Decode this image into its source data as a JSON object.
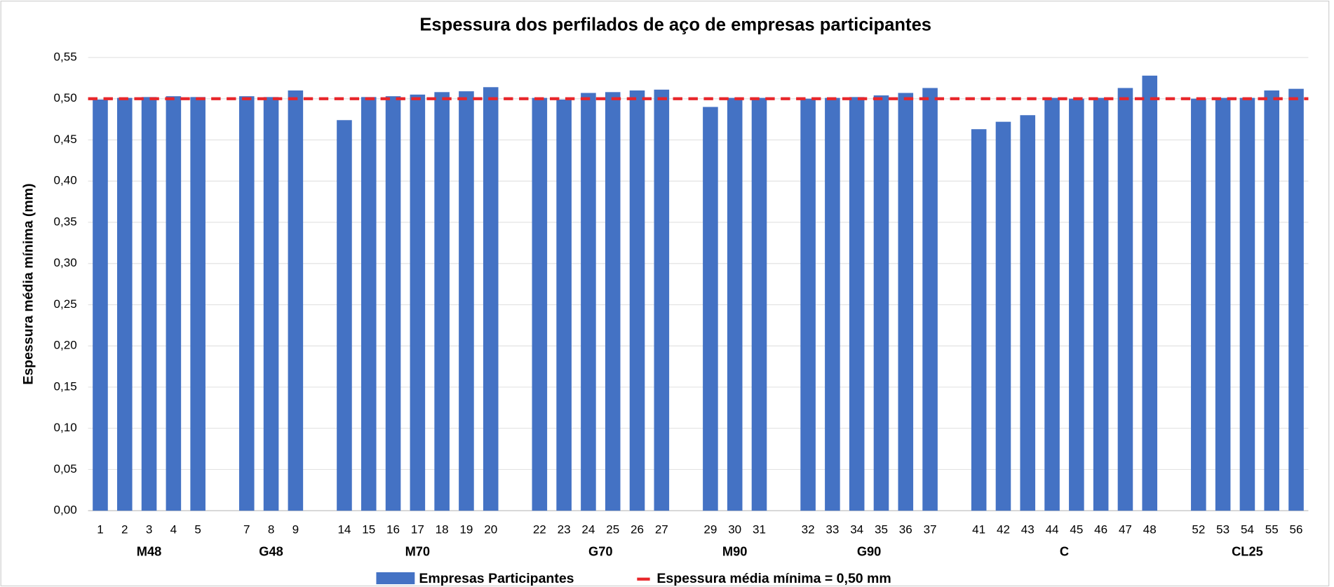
{
  "chart_data": {
    "type": "bar",
    "title": "Espessura dos perfilados de aço de empresas participantes",
    "y_label": "Espessura média mínima (mm)",
    "series_name": "Empresas Participantes",
    "color": "#4472c4",
    "reference_line": {
      "name": "Espessura média mínima = 0,50 mm",
      "value": 0.5,
      "color": "#e8262a"
    },
    "ylim": [
      0,
      0.55
    ],
    "yticks": [
      {
        "value": 0,
        "label": "0,00"
      },
      {
        "value": 0.05,
        "label": "0,05"
      },
      {
        "value": 0.1,
        "label": "0,10"
      },
      {
        "value": 0.15,
        "label": "0,15"
      },
      {
        "value": 0.2,
        "label": "0,20"
      },
      {
        "value": 0.25,
        "label": "0,25"
      },
      {
        "value": 0.3,
        "label": "0,30"
      },
      {
        "value": 0.35,
        "label": "0,35"
      },
      {
        "value": 0.4,
        "label": "0,40"
      },
      {
        "value": 0.45,
        "label": "0,45"
      },
      {
        "value": 0.5,
        "label": "0,50"
      },
      {
        "value": 0.55,
        "label": "0,55"
      }
    ],
    "grid": true,
    "groups": [
      {
        "name": "M48",
        "categories": [
          "1",
          "2",
          "3",
          "4",
          "5"
        ],
        "values": [
          0.499,
          0.501,
          0.502,
          0.503,
          0.502
        ]
      },
      {
        "name": "G48",
        "categories": [
          "7",
          "8",
          "9"
        ],
        "values": [
          0.503,
          0.502,
          0.51
        ]
      },
      {
        "name": "M70",
        "categories": [
          "14",
          "15",
          "16",
          "17",
          "18",
          "19",
          "20"
        ],
        "values": [
          0.474,
          0.502,
          0.503,
          0.505,
          0.508,
          0.509,
          0.514
        ]
      },
      {
        "name": "G70",
        "categories": [
          "22",
          "23",
          "24",
          "25",
          "26",
          "27"
        ],
        "values": [
          0.501,
          0.499,
          0.507,
          0.508,
          0.51,
          0.511
        ]
      },
      {
        "name": "M90",
        "categories": [
          "29",
          "30",
          "31"
        ],
        "values": [
          0.49,
          0.501,
          0.501
        ]
      },
      {
        "name": "G90",
        "categories": [
          "32",
          "33",
          "34",
          "35",
          "36",
          "37"
        ],
        "values": [
          0.5,
          0.501,
          0.502,
          0.504,
          0.507,
          0.513
        ]
      },
      {
        "name": "C",
        "categories": [
          "41",
          "42",
          "43",
          "44",
          "45",
          "46",
          "47",
          "48"
        ],
        "values": [
          0.463,
          0.472,
          0.48,
          0.501,
          0.5,
          0.501,
          0.513,
          0.528
        ]
      },
      {
        "name": "CL25",
        "categories": [
          "52",
          "53",
          "54",
          "55",
          "56"
        ],
        "values": [
          0.5,
          0.501,
          0.501,
          0.51,
          0.512
        ]
      }
    ]
  }
}
